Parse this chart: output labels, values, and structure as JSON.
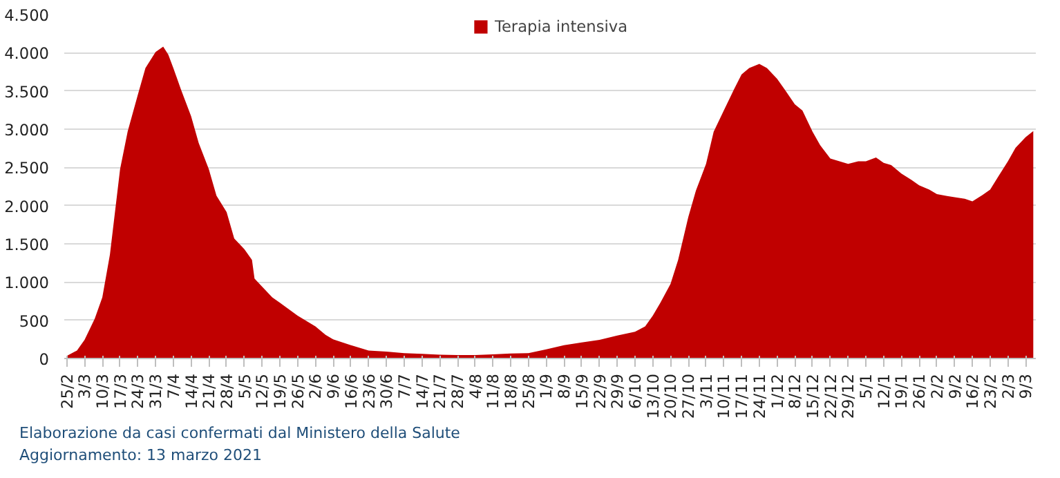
{
  "chart_data": {
    "type": "area",
    "annotations": [
      "Elaborazione da casi confermati dal Ministero della Salute",
      "Aggiornamento: 13 marzo 2021"
    ],
    "x": [
      "2020-02-25",
      "2020-02-29",
      "2020-03-03",
      "2020-03-07",
      "2020-03-10",
      "2020-03-13",
      "2020-03-17",
      "2020-03-20",
      "2020-03-24",
      "2020-03-27",
      "2020-03-31",
      "2020-04-03",
      "2020-04-05",
      "2020-04-07",
      "2020-04-10",
      "2020-04-14",
      "2020-04-17",
      "2020-04-21",
      "2020-04-24",
      "2020-04-28",
      "2020-05-01",
      "2020-05-05",
      "2020-05-08",
      "2020-05-09",
      "2020-05-12",
      "2020-05-16",
      "2020-05-19",
      "2020-05-26",
      "2020-06-02",
      "2020-06-06",
      "2020-06-09",
      "2020-06-16",
      "2020-06-23",
      "2020-06-30",
      "2020-07-07",
      "2020-07-14",
      "2020-07-21",
      "2020-07-28",
      "2020-08-04",
      "2020-08-11",
      "2020-08-18",
      "2020-08-25",
      "2020-09-01",
      "2020-09-08",
      "2020-09-15",
      "2020-09-22",
      "2020-09-29",
      "2020-10-06",
      "2020-10-10",
      "2020-10-13",
      "2020-10-16",
      "2020-10-20",
      "2020-10-23",
      "2020-10-27",
      "2020-10-30",
      "2020-11-03",
      "2020-11-06",
      "2020-11-10",
      "2020-11-14",
      "2020-11-17",
      "2020-11-20",
      "2020-11-24",
      "2020-11-27",
      "2020-12-01",
      "2020-12-04",
      "2020-12-08",
      "2020-12-11",
      "2020-12-15",
      "2020-12-18",
      "2020-12-22",
      "2020-12-29",
      "2021-01-02",
      "2021-01-05",
      "2021-01-09",
      "2021-01-12",
      "2021-01-15",
      "2021-01-19",
      "2021-01-23",
      "2021-01-26",
      "2021-01-30",
      "2021-02-02",
      "2021-02-06",
      "2021-02-09",
      "2021-02-13",
      "2021-02-16",
      "2021-02-20",
      "2021-02-23",
      "2021-02-26",
      "2021-03-02",
      "2021-03-05",
      "2021-03-09",
      "2021-03-12"
    ],
    "series": [
      {
        "name": "Terapia intensiva",
        "color": "#c00000",
        "values": [
          35,
          105,
          245,
          520,
          800,
          1360,
          2475,
          2970,
          3450,
          3800,
          4010,
          4080,
          3975,
          3800,
          3520,
          3170,
          2820,
          2475,
          2130,
          1915,
          1570,
          1430,
          1290,
          1045,
          940,
          800,
          730,
          560,
          420,
          310,
          250,
          175,
          105,
          90,
          70,
          60,
          50,
          45,
          45,
          55,
          65,
          70,
          120,
          175,
          210,
          245,
          300,
          350,
          420,
          560,
          730,
          975,
          1290,
          1850,
          2195,
          2545,
          2965,
          3245,
          3520,
          3715,
          3800,
          3855,
          3800,
          3660,
          3520,
          3325,
          3245,
          2965,
          2790,
          2615,
          2545,
          2580,
          2580,
          2630,
          2560,
          2530,
          2420,
          2335,
          2265,
          2210,
          2150,
          2125,
          2110,
          2090,
          2055,
          2140,
          2210,
          2370,
          2580,
          2755,
          2895,
          2975
        ]
      }
    ],
    "xlim": [
      "2020-02-24",
      "2021-03-13"
    ],
    "xticks": [
      {
        "value": "2020-02-25",
        "label": "25/2"
      },
      {
        "value": "2020-03-03",
        "label": "3/3"
      },
      {
        "value": "2020-03-10",
        "label": "10/3"
      },
      {
        "value": "2020-03-17",
        "label": "17/3"
      },
      {
        "value": "2020-03-24",
        "label": "24/3"
      },
      {
        "value": "2020-03-31",
        "label": "31/3"
      },
      {
        "value": "2020-04-07",
        "label": "7/4"
      },
      {
        "value": "2020-04-14",
        "label": "14/4"
      },
      {
        "value": "2020-04-21",
        "label": "21/4"
      },
      {
        "value": "2020-04-28",
        "label": "28/4"
      },
      {
        "value": "2020-05-05",
        "label": "5/5"
      },
      {
        "value": "2020-05-12",
        "label": "12/5"
      },
      {
        "value": "2020-05-19",
        "label": "19/5"
      },
      {
        "value": "2020-05-26",
        "label": "26/5"
      },
      {
        "value": "2020-06-02",
        "label": "2/6"
      },
      {
        "value": "2020-06-09",
        "label": "9/6"
      },
      {
        "value": "2020-06-16",
        "label": "16/6"
      },
      {
        "value": "2020-06-23",
        "label": "23/6"
      },
      {
        "value": "2020-06-30",
        "label": "30/6"
      },
      {
        "value": "2020-07-07",
        "label": "7/7"
      },
      {
        "value": "2020-07-14",
        "label": "14/7"
      },
      {
        "value": "2020-07-21",
        "label": "21/7"
      },
      {
        "value": "2020-07-28",
        "label": "28/7"
      },
      {
        "value": "2020-08-04",
        "label": "4/8"
      },
      {
        "value": "2020-08-11",
        "label": "11/8"
      },
      {
        "value": "2020-08-18",
        "label": "18/8"
      },
      {
        "value": "2020-08-25",
        "label": "25/8"
      },
      {
        "value": "2020-09-01",
        "label": "1/9"
      },
      {
        "value": "2020-09-08",
        "label": "8/9"
      },
      {
        "value": "2020-09-15",
        "label": "15/9"
      },
      {
        "value": "2020-09-22",
        "label": "22/9"
      },
      {
        "value": "2020-09-29",
        "label": "29/9"
      },
      {
        "value": "2020-10-06",
        "label": "6/10"
      },
      {
        "value": "2020-10-13",
        "label": "13/10"
      },
      {
        "value": "2020-10-20",
        "label": "20/10"
      },
      {
        "value": "2020-10-27",
        "label": "27/10"
      },
      {
        "value": "2020-11-03",
        "label": "3/11"
      },
      {
        "value": "2020-11-10",
        "label": "10/11"
      },
      {
        "value": "2020-11-17",
        "label": "17/11"
      },
      {
        "value": "2020-11-24",
        "label": "24/11"
      },
      {
        "value": "2020-12-01",
        "label": "1/12"
      },
      {
        "value": "2020-12-08",
        "label": "8/12"
      },
      {
        "value": "2020-12-15",
        "label": "15/12"
      },
      {
        "value": "2020-12-22",
        "label": "22/12"
      },
      {
        "value": "2020-12-29",
        "label": "29/12"
      },
      {
        "value": "2021-01-05",
        "label": "5/1"
      },
      {
        "value": "2021-01-12",
        "label": "12/1"
      },
      {
        "value": "2021-01-19",
        "label": "19/1"
      },
      {
        "value": "2021-01-26",
        "label": "26/1"
      },
      {
        "value": "2021-02-02",
        "label": "2/2"
      },
      {
        "value": "2021-02-09",
        "label": "9/2"
      },
      {
        "value": "2021-02-16",
        "label": "16/2"
      },
      {
        "value": "2021-02-23",
        "label": "23/2"
      },
      {
        "value": "2021-03-02",
        "label": "2/3"
      },
      {
        "value": "2021-03-09",
        "label": "9/3"
      }
    ],
    "ylim": [
      0,
      4500
    ],
    "yticks": [
      {
        "value": 0,
        "label": "0"
      },
      {
        "value": 500,
        "label": "500"
      },
      {
        "value": 1000,
        "label": "1.000"
      },
      {
        "value": 1500,
        "label": "1.500"
      },
      {
        "value": 2000,
        "label": "2.000"
      },
      {
        "value": 2500,
        "label": "2.500"
      },
      {
        "value": 3000,
        "label": "3.000"
      },
      {
        "value": 3500,
        "label": "3.500"
      },
      {
        "value": 4000,
        "label": "4.000"
      },
      {
        "value": 4500,
        "label": "4.500"
      }
    ],
    "grid": "y",
    "legend": "top"
  }
}
